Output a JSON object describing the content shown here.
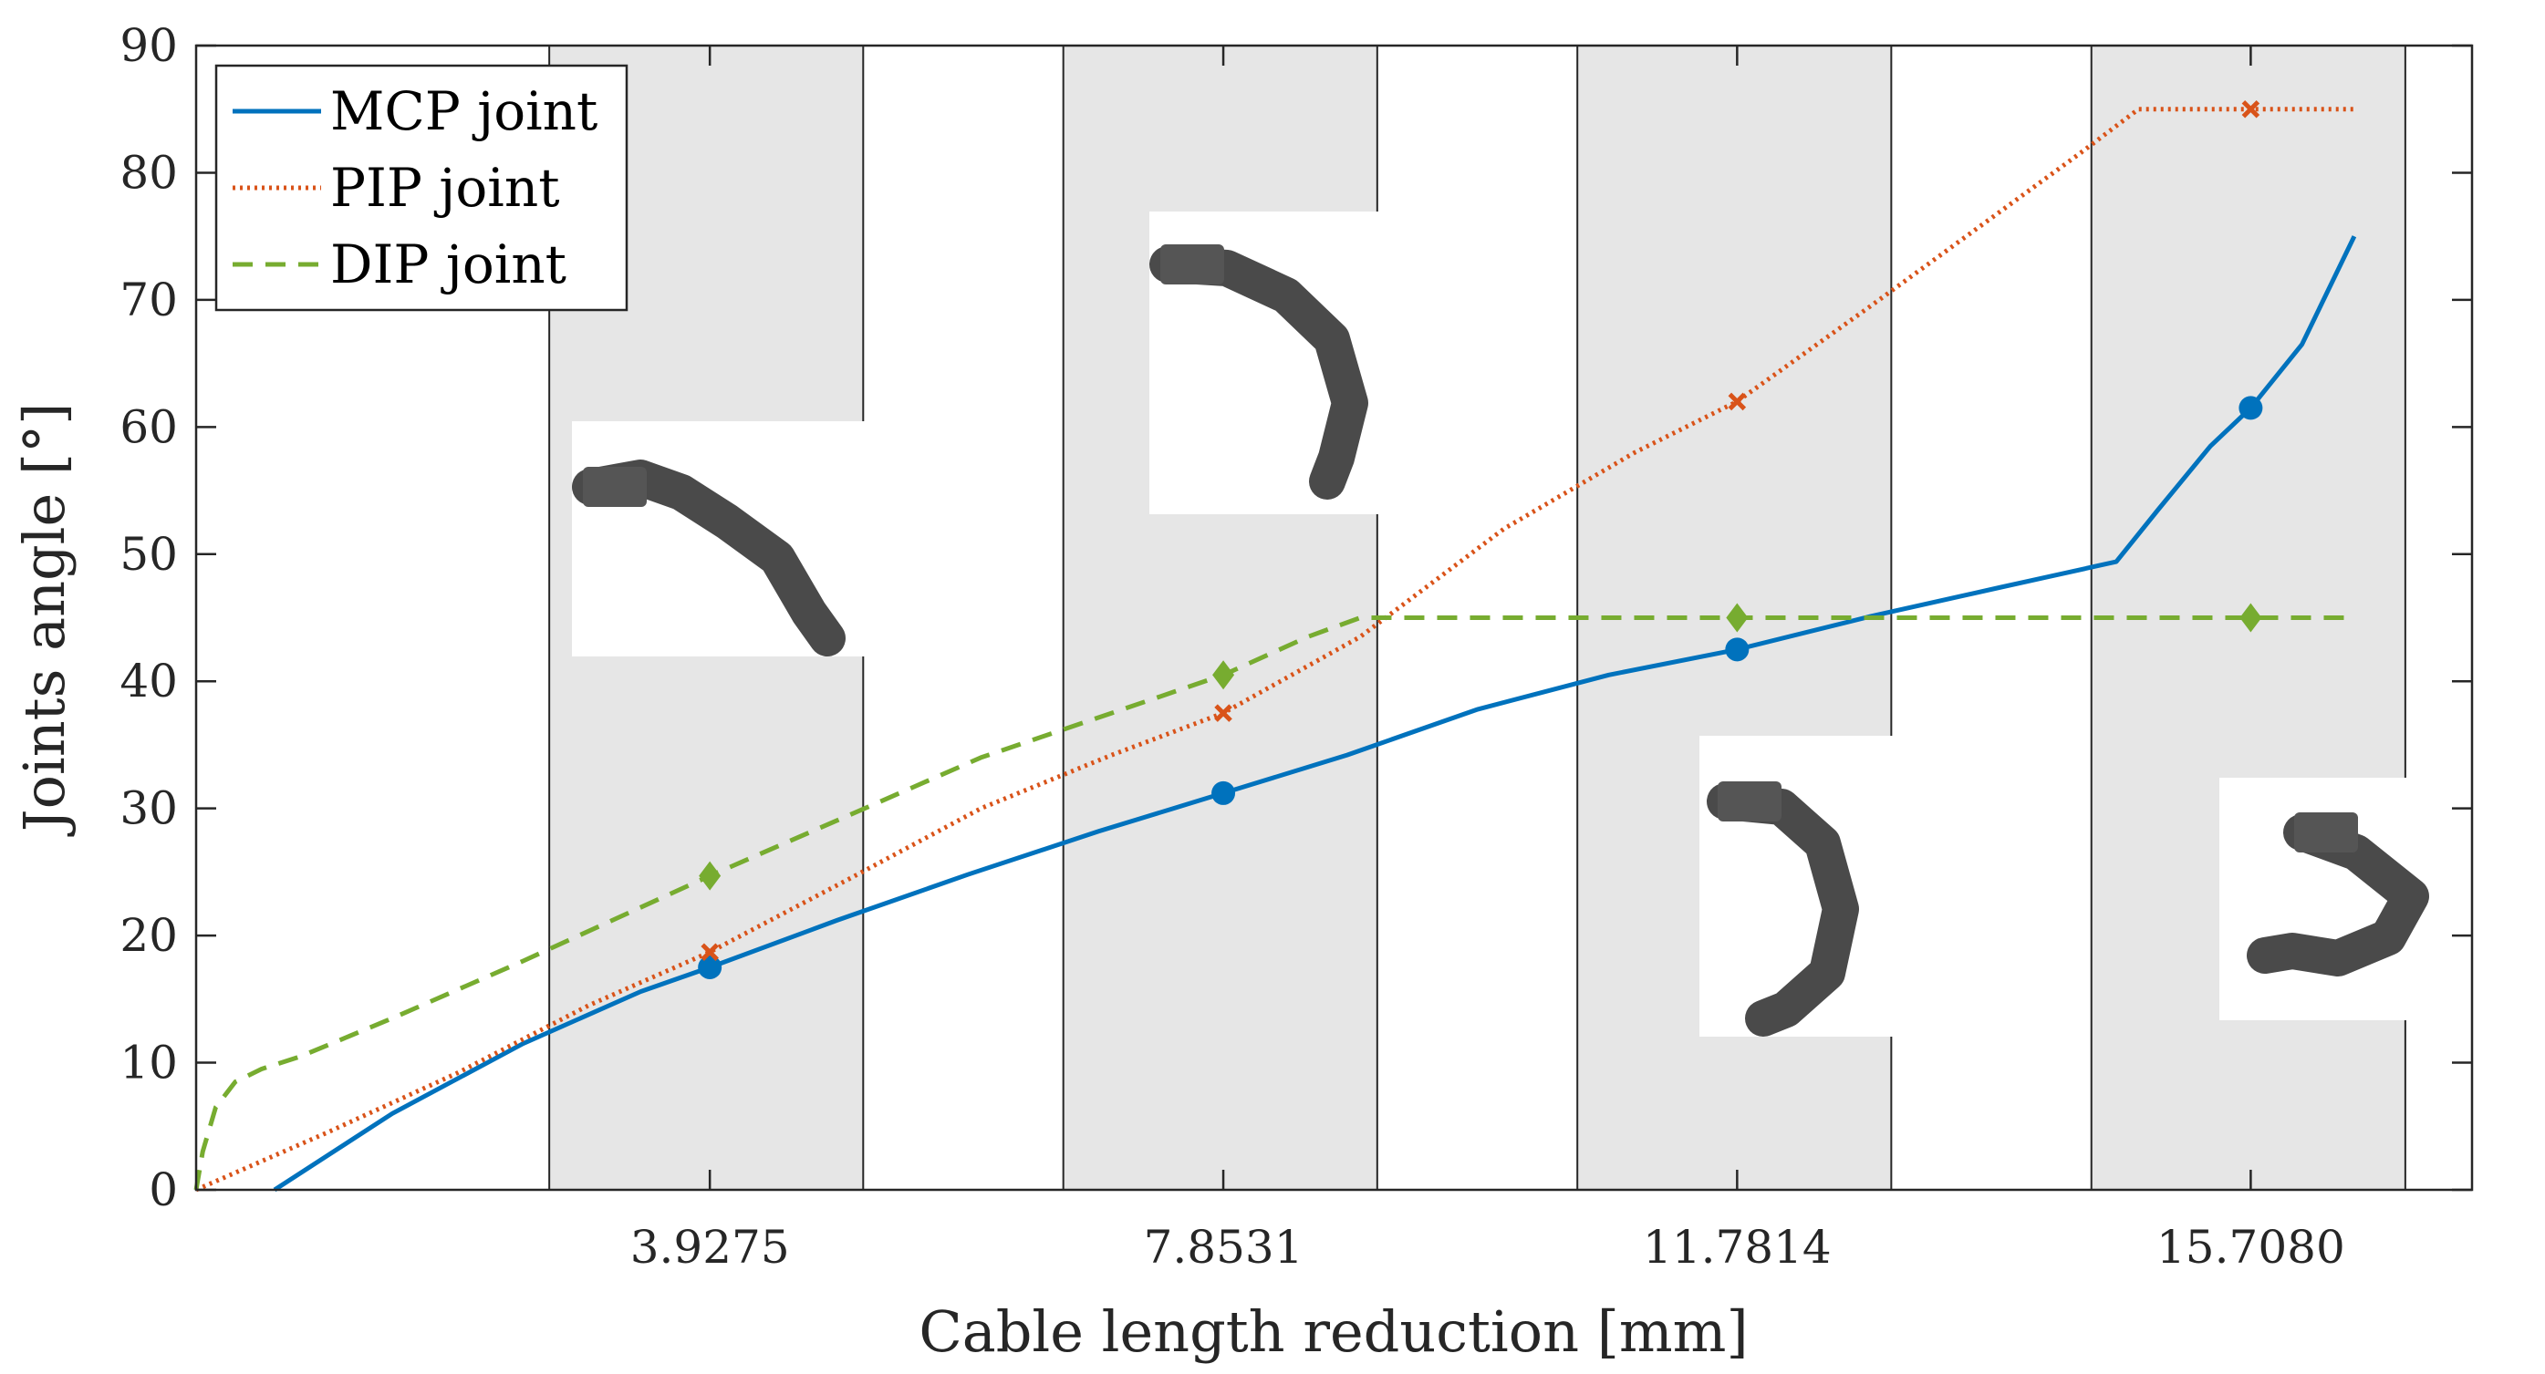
{
  "chart_data": {
    "type": "line",
    "xlabel": "Cable length reduction [mm]",
    "ylabel": "Joints angle [°]",
    "xlim": [
      0,
      17.4
    ],
    "ylim": [
      0,
      90
    ],
    "yticks": [
      0,
      10,
      20,
      30,
      40,
      50,
      60,
      70,
      80,
      90
    ],
    "xticks": [
      3.9275,
      7.8531,
      11.7814,
      15.708
    ],
    "xtick_labels": [
      "3.9275",
      "7.8531",
      "11.7814",
      "15.7080"
    ],
    "grid": false,
    "legend_position": "top-left",
    "highlight_bands": [
      {
        "from": 2.7,
        "to": 5.1
      },
      {
        "from": 6.63,
        "to": 9.03
      },
      {
        "from": 10.56,
        "to": 12.96
      },
      {
        "from": 14.49,
        "to": 16.89
      }
    ],
    "band_color": "#e6e6e6",
    "series": [
      {
        "name": "MCP joint",
        "color": "#0072bd",
        "style": "solid",
        "marker": "circle",
        "x": [
          0.6,
          1.5,
          2.5,
          3.4,
          3.9275,
          4.9,
          5.9,
          6.9,
          7.8531,
          8.8,
          9.8,
          10.8,
          11.7814,
          12.8,
          13.8,
          14.68,
          15.0,
          15.4,
          15.708,
          16.1,
          16.5
        ],
        "y": [
          0,
          6,
          11.5,
          15.6,
          17.5,
          21.2,
          24.8,
          28.2,
          31.2,
          34.2,
          37.8,
          40.5,
          42.5,
          45.1,
          47.4,
          49.4,
          53.5,
          58.5,
          61.5,
          66.5,
          75
        ],
        "markers_x": [
          3.9275,
          7.8531,
          11.7814,
          15.708
        ],
        "markers_y": [
          17.5,
          31.2,
          42.5,
          61.5
        ]
      },
      {
        "name": "PIP joint",
        "color": "#d95319",
        "style": "dotted",
        "marker": "x",
        "x": [
          0,
          1.0,
          2.0,
          3.0,
          3.9275,
          5.0,
          6.0,
          7.0,
          7.8531,
          8.9,
          10.0,
          11.0,
          11.7814,
          12.8,
          13.8,
          14.4,
          14.85,
          15.2,
          15.708,
          16.5
        ],
        "y": [
          0,
          4.5,
          9.2,
          14.5,
          18.7,
          24.5,
          30,
          34.2,
          37.5,
          43.5,
          52,
          58,
          62,
          69.5,
          77,
          81.5,
          85,
          85,
          85,
          85
        ],
        "markers_x": [
          3.9275,
          7.8531,
          11.7814,
          15.708
        ],
        "markers_y": [
          18.7,
          37.5,
          62,
          85
        ]
      },
      {
        "name": "DIP joint",
        "color": "#77ac30",
        "style": "dashed",
        "marker": "diamond",
        "x": [
          0,
          0.05,
          0.15,
          0.3,
          0.5,
          0.8,
          1.5,
          2.5,
          3.9275,
          5.0,
          6.0,
          7.0,
          7.8531,
          8.5,
          8.9,
          10.0,
          11.7814,
          13.0,
          14.5,
          15.708,
          16.5
        ],
        "y": [
          0,
          3,
          6.5,
          8.5,
          9.5,
          10.5,
          13.5,
          18,
          24.7,
          29.5,
          34,
          37.5,
          40.5,
          43.5,
          45,
          45,
          45,
          45,
          45,
          45,
          45
        ],
        "markers_x": [
          3.9275,
          7.8531,
          11.7814,
          15.708
        ],
        "markers_y": [
          24.7,
          40.5,
          45,
          45
        ]
      }
    ]
  }
}
